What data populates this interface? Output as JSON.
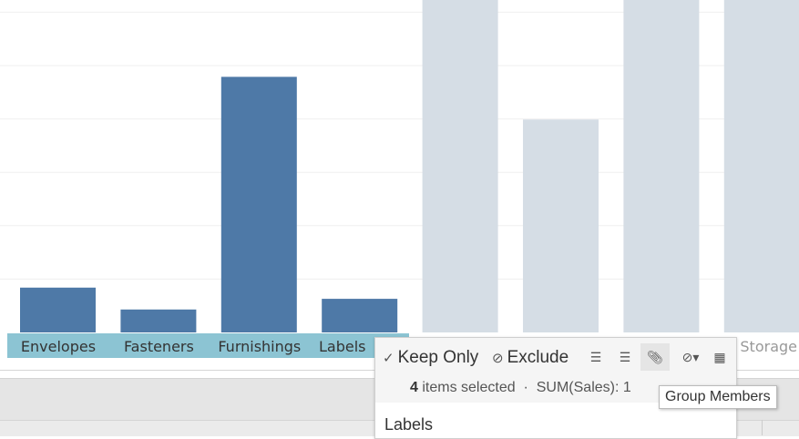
{
  "chart_data": {
    "type": "bar",
    "categories": [
      "Envelopes",
      "Fasteners",
      "Furnishings",
      "Labels",
      "",
      "",
      "",
      "Storage"
    ],
    "values": [
      0.84,
      0.43,
      4.79,
      0.63,
      6.3,
      3.99,
      6.3,
      6.3
    ],
    "selected": [
      true,
      true,
      true,
      true,
      false,
      false,
      false,
      false
    ],
    "ylim": [
      0,
      6.23
    ],
    "grid": true,
    "colors": {
      "selected": "#4e79a7",
      "unselected": "#d5dde5",
      "label_highlight": "#8cc4d3"
    }
  },
  "popup": {
    "keep_only": "Keep Only",
    "exclude": "Exclude",
    "count": "4",
    "items_selected": "items selected",
    "dot": "·",
    "sum_label": "SUM(Sales): 1",
    "section": "Labels",
    "tooltip": "Group Members"
  }
}
